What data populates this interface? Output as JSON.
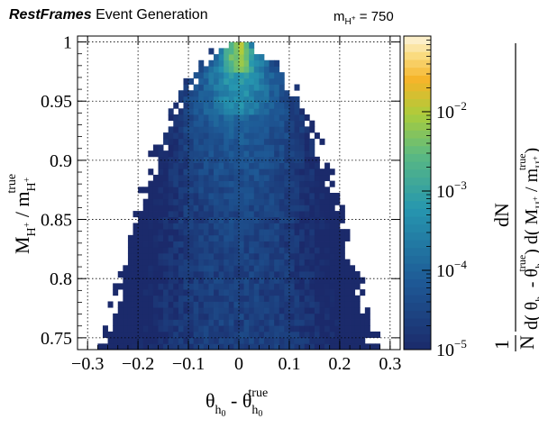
{
  "header": {
    "brand": "RestFrames",
    "title": "Event Generation",
    "mass_label_sym": "m",
    "mass_label_sub": "H",
    "mass_label_sup": "+",
    "mass_value": "= 750"
  },
  "chart_data": {
    "type": "heatmap",
    "xlabel": "θh0 − θh0true",
    "ylabel": "MH+ / mH+true",
    "zlabel": "1/N dN / d(θh0 − θh0true) d(MH+ / mH+true)",
    "xlim": [
      -0.32,
      0.32
    ],
    "ylim": [
      0.74,
      1.005
    ],
    "x_ticks": [
      -0.3,
      -0.2,
      -0.1,
      0,
      0.1,
      0.2,
      0.3
    ],
    "x_tick_labels": [
      "−0.3",
      "−0.2",
      "−0.1",
      "0",
      "0.1",
      "0.2",
      "0.3"
    ],
    "y_ticks": [
      0.75,
      0.8,
      0.85,
      0.9,
      0.95,
      1
    ],
    "y_tick_labels": [
      "0.75",
      "0.8",
      "0.85",
      "0.9",
      "0.95",
      "1"
    ],
    "z_scale": "log",
    "zlim": [
      1e-05,
      0.09
    ],
    "z_ticks": [
      1e-05,
      0.0001,
      0.001,
      0.01
    ],
    "z_tick_labels": [
      "10",
      "10",
      "10",
      "10"
    ],
    "z_tick_exponents": [
      "−5",
      "−4",
      "−3",
      "−2"
    ],
    "grid": true,
    "colors": {
      "low": "#1b2a6b",
      "mid_low": "#1f5f9a",
      "mid": "#2a9bb0",
      "mid_high": "#6cbf7a",
      "high": "#f0b429",
      "top": "#fdf4dc"
    }
  }
}
